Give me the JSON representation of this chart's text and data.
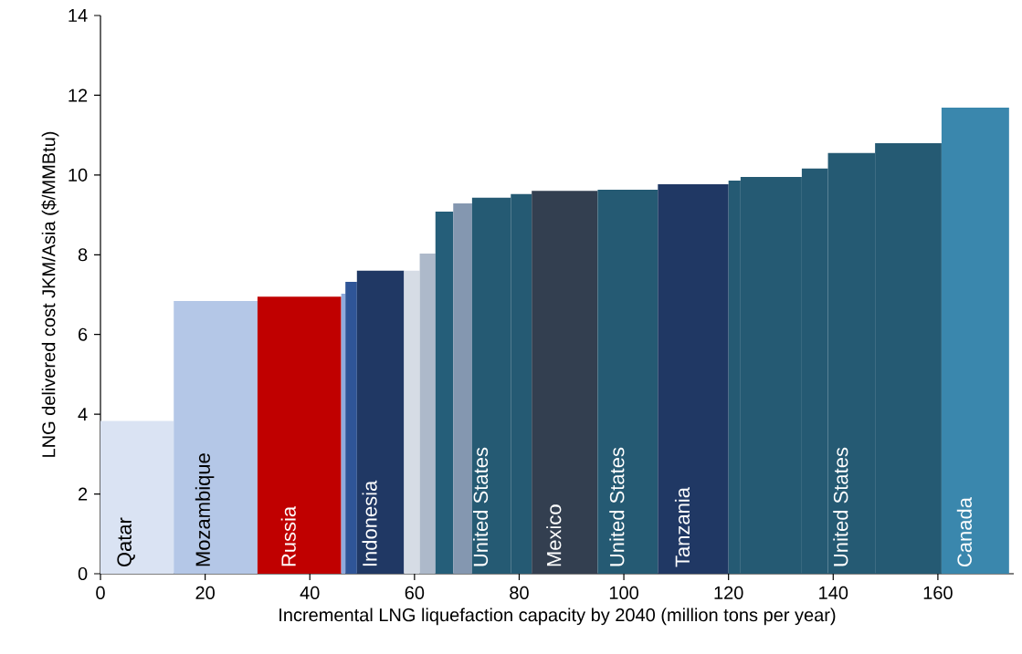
{
  "chart_data": {
    "type": "histogram",
    "xlabel": "Incremental LNG liquefaction capacity by 2040 (million tons per year)",
    "ylabel": "LNG delivered cost JKM/Asia ($/MMBtu)",
    "bins": [
      0,
      14,
      30,
      46,
      46.8,
      49,
      58,
      61,
      64,
      67.4,
      71,
      78.4,
      82.4,
      95,
      106.5,
      120,
      122.3,
      134,
      139,
      148,
      160.7,
      173.6
    ],
    "values": [
      3.83,
      6.84,
      6.95,
      7.02,
      7.32,
      7.6,
      7.6,
      8.03,
      9.08,
      9.29,
      9.43,
      9.52,
      9.6,
      9.63,
      9.77,
      9.86,
      9.95,
      10.16,
      10.55,
      10.8,
      11.69
    ],
    "colors": [
      "#dae3f3",
      "#b4c7e7",
      "#c00000",
      "#8faadc",
      "#2f5597",
      "#203864",
      "#d6dce5",
      "#adb9ca",
      "#255e79",
      "#8497b0",
      "#255a73",
      "#255a73",
      "#333f50",
      "#255a73",
      "#203864",
      "#255a73",
      "#255a73",
      "#255a73",
      "#255a73",
      "#255a73",
      "#3a87ad"
    ],
    "xlim": [
      0,
      174.5
    ],
    "ylim": [
      0,
      14
    ],
    "xticks": [
      0,
      20,
      40,
      60,
      80,
      100,
      120,
      140,
      160
    ],
    "yticks": [
      0,
      2,
      4,
      6,
      8,
      10,
      12,
      14
    ],
    "value_labels": [
      "Qatar",
      "Mozambique",
      "Russia",
      null,
      null,
      "Indonesia",
      null,
      null,
      null,
      null,
      "United States",
      null,
      "Mexico",
      "United States",
      "Tanzania",
      null,
      null,
      null,
      "United States",
      null,
      "Canada"
    ]
  }
}
